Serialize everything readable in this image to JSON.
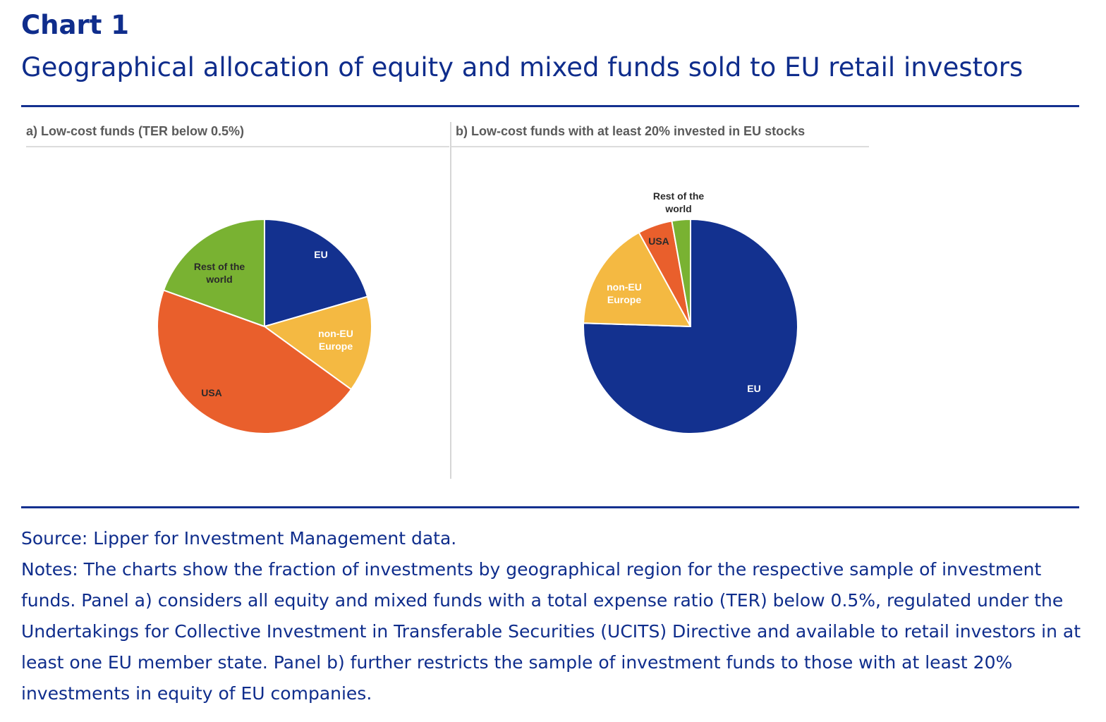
{
  "header": {
    "label": "Chart 1",
    "title": "Geographical allocation of equity and mixed funds sold to EU retail investors"
  },
  "colors": {
    "eu": "#13318f",
    "non_eu_europe": "#f4b942",
    "usa": "#e95f2c",
    "rest_of_world": "#79b232",
    "rule": "#14308f",
    "label_light": "#ffffff",
    "label_dark": "#2a2a2a"
  },
  "chart_data": [
    {
      "type": "pie",
      "title": "a) Low-cost funds (TER below 0.5%)",
      "categories": [
        "EU",
        "non-EU Europe",
        "USA",
        "Rest of the world"
      ],
      "values": [
        20.5,
        14.5,
        45.5,
        19.5
      ],
      "start_angle_deg": 0,
      "direction": "clockwise",
      "legend": "none"
    },
    {
      "type": "pie",
      "title": "b) Low-cost funds with at least 20% invested in EU stocks",
      "categories": [
        "EU",
        "non-EU Europe",
        "USA",
        "Rest of the world"
      ],
      "values": [
        75.5,
        16.5,
        5.2,
        2.8
      ],
      "start_angle_deg": 0,
      "direction": "clockwise",
      "legend": "none"
    }
  ],
  "footer": {
    "source": "Source: Lipper for Investment Management data.",
    "notes": "Notes: The charts show the fraction of investments by geographical region for the respective sample of investment funds. Panel a) considers all equity and mixed funds with a total expense ratio (TER) below 0.5%, regulated under the Undertakings for Collective Investment in Transferable Securities (UCITS) Directive and available to retail investors in at least one EU member state. Panel b) further restricts the sample of investment funds to those with at least 20% investments in equity of EU companies."
  }
}
